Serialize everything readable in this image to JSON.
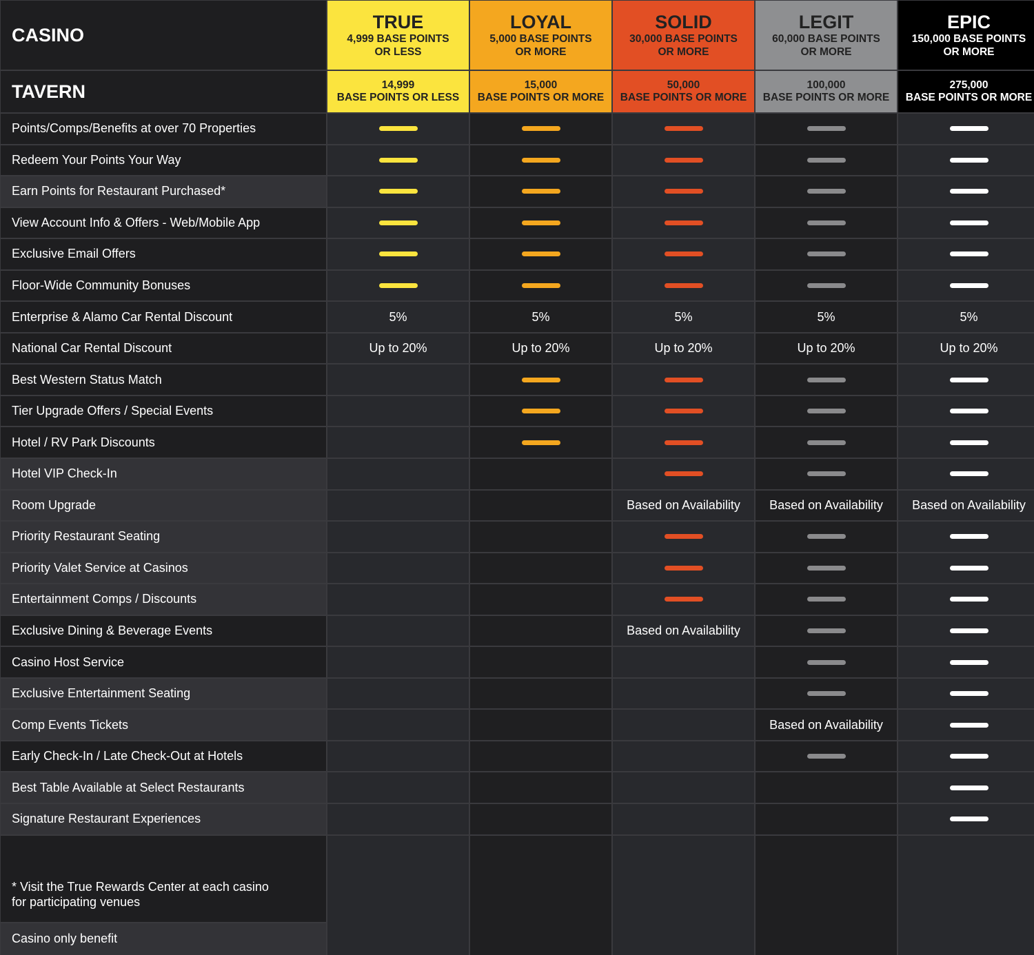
{
  "header": {
    "casino_label": "CASINO",
    "tavern_label": "TAVERN"
  },
  "tiers": [
    {
      "name": "TRUE",
      "casino": [
        "4,999 BASE POINTS",
        "OR LESS"
      ],
      "tavern": [
        "14,999",
        "BASE POINTS OR LESS"
      ],
      "color": "#fbe43e",
      "text_color": "#222222",
      "dash_color": "#fbe43e"
    },
    {
      "name": "LOYAL",
      "casino": [
        "5,000 BASE POINTS",
        "OR MORE"
      ],
      "tavern": [
        "15,000",
        "BASE POINTS OR MORE"
      ],
      "color": "#f4a71f",
      "text_color": "#222222",
      "dash_color": "#f4a71f"
    },
    {
      "name": "SOLID",
      "casino": [
        "30,000 BASE POINTS",
        "OR MORE"
      ],
      "tavern": [
        "50,000",
        "BASE POINTS OR MORE"
      ],
      "color": "#e24f24",
      "text_color": "#222222",
      "dash_color": "#e24f24"
    },
    {
      "name": "LEGIT",
      "casino": [
        "60,000 BASE POINTS",
        "OR MORE"
      ],
      "tavern": [
        "100,000",
        "BASE POINTS OR MORE"
      ],
      "color": "#8e8f91",
      "text_color": "#222222",
      "dash_color": "#8a8a8c"
    },
    {
      "name": "EPIC",
      "casino": [
        "150,000 BASE POINTS",
        "OR MORE"
      ],
      "tavern": [
        "275,000",
        "BASE POINTS OR MORE"
      ],
      "color": "#000000",
      "text_color": "#ffffff",
      "dash_color": "#ffffff"
    }
  ],
  "rows": [
    {
      "label": "Points/Comps/Benefits at over 70 Properties",
      "casino_only": false,
      "cells": [
        "-",
        "-",
        "-",
        "-",
        "-"
      ]
    },
    {
      "label": "Redeem Your Points Your Way",
      "casino_only": false,
      "cells": [
        "-",
        "-",
        "-",
        "-",
        "-"
      ]
    },
    {
      "label": "Earn Points for Restaurant Purchased*",
      "casino_only": true,
      "cells": [
        "-",
        "-",
        "-",
        "-",
        "-"
      ]
    },
    {
      "label": "View Account Info & Offers - Web/Mobile App",
      "casino_only": false,
      "cells": [
        "-",
        "-",
        "-",
        "-",
        "-"
      ]
    },
    {
      "label": "Exclusive Email Offers",
      "casino_only": false,
      "cells": [
        "-",
        "-",
        "-",
        "-",
        "-"
      ]
    },
    {
      "label": "Floor-Wide Community Bonuses",
      "casino_only": false,
      "cells": [
        "-",
        "-",
        "-",
        "-",
        "-"
      ]
    },
    {
      "label": "Enterprise & Alamo Car Rental Discount",
      "casino_only": false,
      "cells": [
        "5%",
        "5%",
        "5%",
        "5%",
        "5%"
      ]
    },
    {
      "label": "National Car Rental Discount",
      "casino_only": false,
      "cells": [
        "Up to 20%",
        "Up to 20%",
        "Up to 20%",
        "Up to 20%",
        "Up to 20%"
      ]
    },
    {
      "label": "Best Western Status Match",
      "casino_only": false,
      "cells": [
        "",
        "-",
        "-",
        "-",
        "-"
      ]
    },
    {
      "label": "Tier Upgrade Offers / Special Events",
      "casino_only": false,
      "cells": [
        "",
        "-",
        "-",
        "-",
        "-"
      ]
    },
    {
      "label": "Hotel / RV Park Discounts",
      "casino_only": false,
      "cells": [
        "",
        "-",
        "-",
        "-",
        "-"
      ]
    },
    {
      "label": "Hotel VIP Check-In",
      "casino_only": true,
      "cells": [
        "",
        "",
        "-",
        "-",
        "-"
      ]
    },
    {
      "label": "Room Upgrade",
      "casino_only": true,
      "cells": [
        "",
        "",
        "Based on Availability",
        "Based on Availability",
        "Based on Availability"
      ]
    },
    {
      "label": "Priority Restaurant Seating",
      "casino_only": true,
      "cells": [
        "",
        "",
        "-",
        "-",
        "-"
      ]
    },
    {
      "label": "Priority Valet Service at Casinos",
      "casino_only": true,
      "cells": [
        "",
        "",
        "-",
        "-",
        "-"
      ]
    },
    {
      "label": "Entertainment Comps / Discounts",
      "casino_only": true,
      "cells": [
        "",
        "",
        "-",
        "-",
        "-"
      ]
    },
    {
      "label": "Exclusive Dining & Beverage Events",
      "casino_only": false,
      "cells": [
        "",
        "",
        "Based on Availability",
        "-",
        "-"
      ]
    },
    {
      "label": "Casino Host Service",
      "casino_only": false,
      "cells": [
        "",
        "",
        "",
        "-",
        "-"
      ]
    },
    {
      "label": "Exclusive Entertainment Seating",
      "casino_only": true,
      "cells": [
        "",
        "",
        "",
        "-",
        "-"
      ]
    },
    {
      "label": "Comp Events Tickets",
      "casino_only": true,
      "cells": [
        "",
        "",
        "",
        "Based on Availability",
        "-"
      ]
    },
    {
      "label": "Early Check-In / Late Check-Out at Hotels",
      "casino_only": false,
      "cells": [
        "",
        "",
        "",
        "-",
        "-"
      ]
    },
    {
      "label": "Best Table Available at Select Restaurants",
      "casino_only": true,
      "cells": [
        "",
        "",
        "",
        "",
        "-"
      ]
    },
    {
      "label": "Signature Restaurant Experiences",
      "casino_only": true,
      "cells": [
        "",
        "",
        "",
        "",
        "-"
      ]
    }
  ],
  "footnote": [
    "* Visit the True Rewards Center at each casino",
    "for participating venues"
  ],
  "legend": "Casino only benefit"
}
